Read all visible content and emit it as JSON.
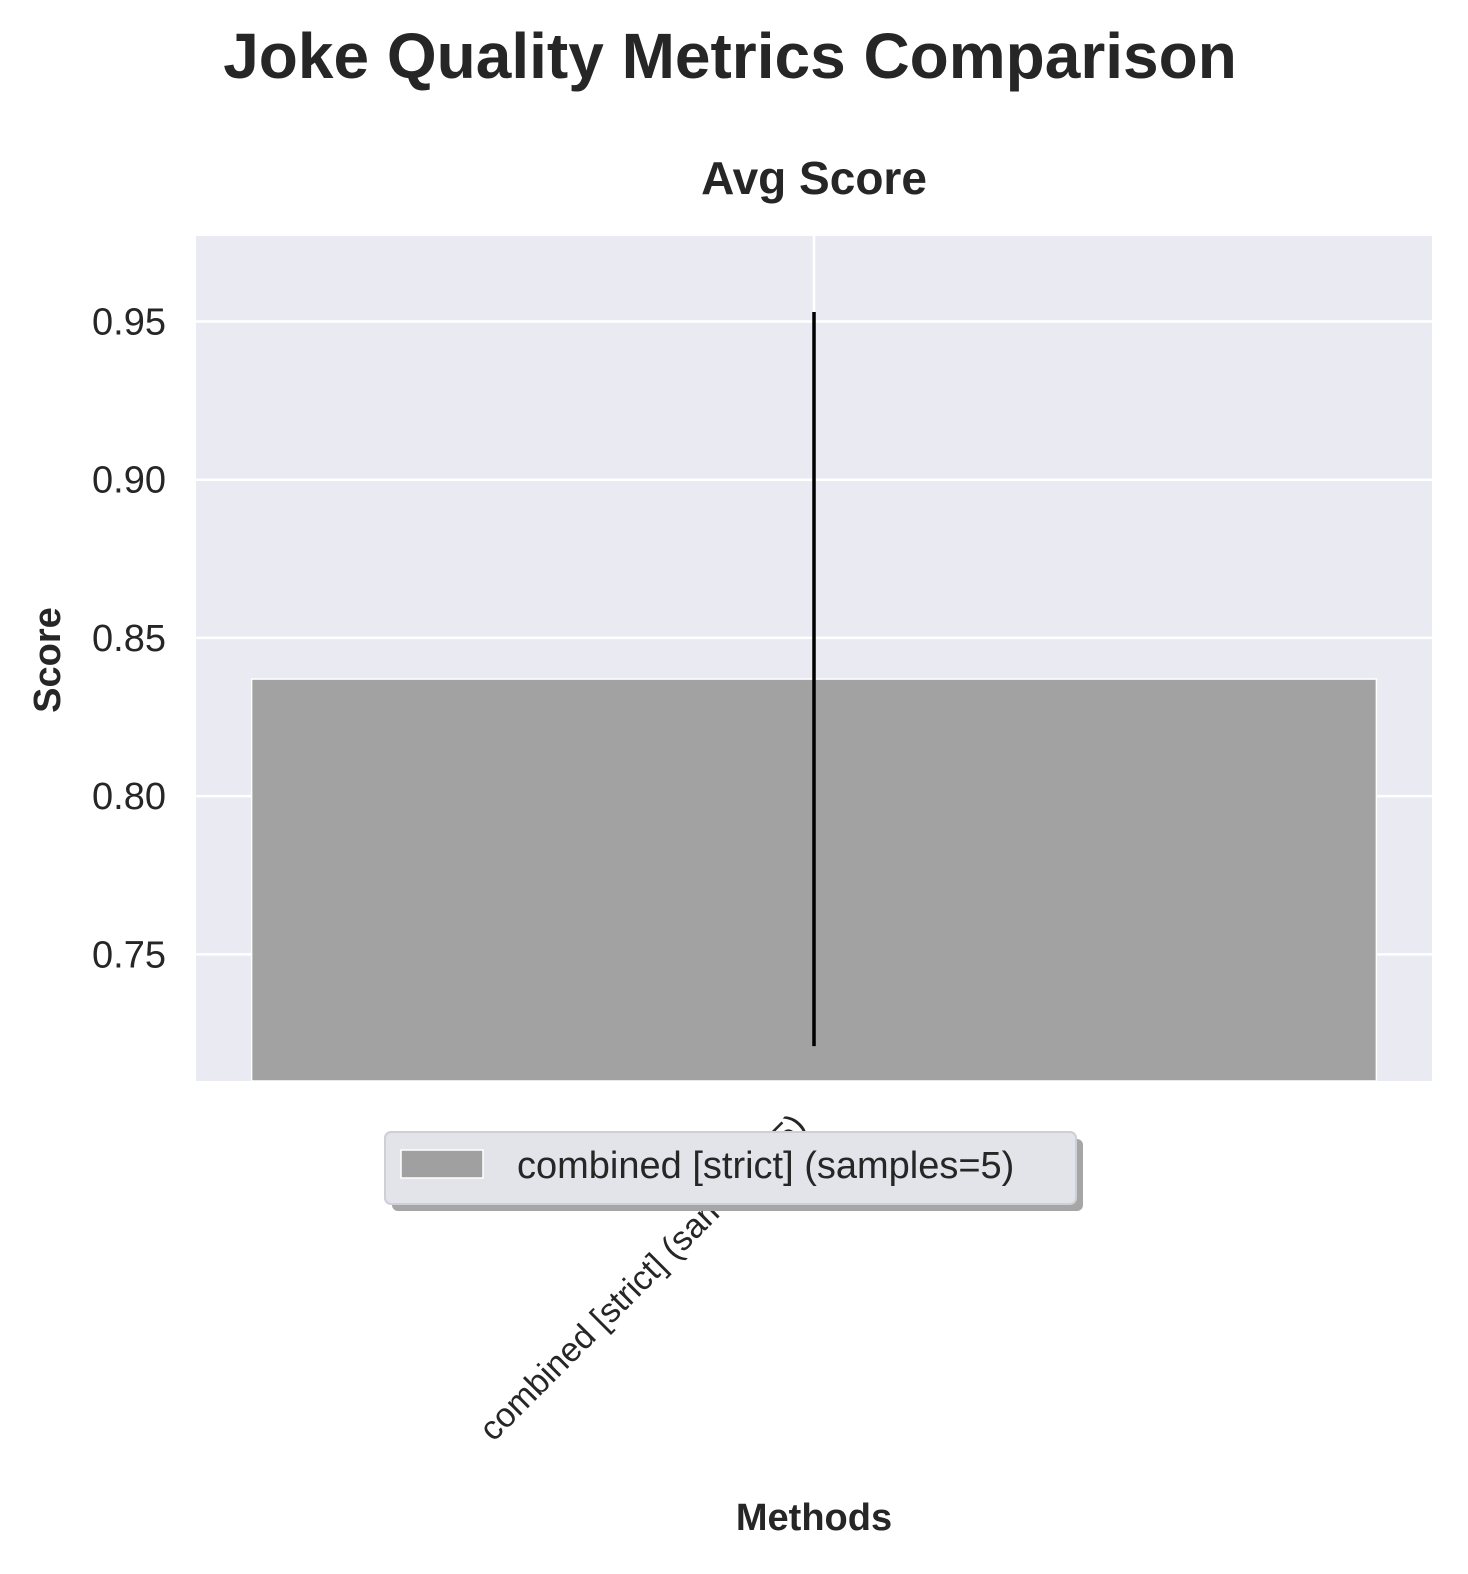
{
  "chart_data": {
    "type": "bar",
    "title": "Joke Quality Metrics Comparison",
    "subplot_title": "Avg Score",
    "xlabel": "Methods",
    "ylabel": "Score",
    "categories": [
      "combined [strict] (samples=5)"
    ],
    "series": [
      {
        "name": "combined [strict] (samples=5)",
        "values": [
          0.837
        ],
        "error": [
          0.116
        ],
        "color": "#a0a0a0"
      }
    ],
    "ylim": [
      0.71,
      0.977
    ],
    "yticks": [
      0.75,
      0.8,
      0.85,
      0.9,
      0.95
    ],
    "ytick_labels": [
      "0.75",
      "0.80",
      "0.85",
      "0.90",
      "0.95"
    ],
    "grid": true,
    "legend_placement": "lower-center",
    "background_color": "#eaeaf2",
    "grid_color": "#ffffff",
    "errorbar_color": "#000000"
  }
}
